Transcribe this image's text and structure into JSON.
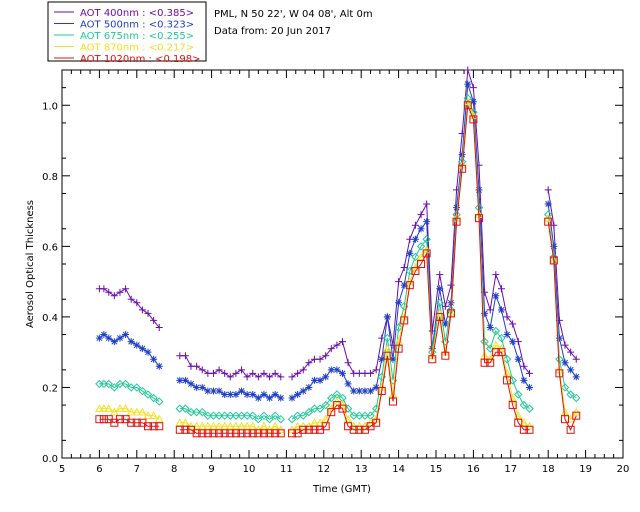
{
  "info": {
    "location": "PML, N 50 22', W 04 08', Alt 0m",
    "date": "Data from: 20 Jun 2017"
  },
  "chart_data": {
    "type": "line",
    "title": "",
    "xlabel": "Time (GMT)",
    "ylabel": "Aerosol Optical Thickness",
    "xlim": [
      5,
      20
    ],
    "ylim": [
      0.0,
      1.1
    ],
    "xticks": [
      5,
      6,
      7,
      8,
      9,
      10,
      11,
      12,
      13,
      14,
      15,
      16,
      17,
      18,
      19,
      20
    ],
    "yticks": [
      0.0,
      0.2,
      0.4,
      0.6,
      0.8,
      1.0
    ],
    "x": [
      6.0,
      6.12,
      6.25,
      6.4,
      6.55,
      6.7,
      6.85,
      7.0,
      7.15,
      7.3,
      7.45,
      7.6,
      8.0,
      8.15,
      8.3,
      8.45,
      8.6,
      8.75,
      8.9,
      9.05,
      9.2,
      9.35,
      9.5,
      9.65,
      9.8,
      9.95,
      10.1,
      10.25,
      10.4,
      10.55,
      10.7,
      10.85,
      11.0,
      11.15,
      11.3,
      11.45,
      11.6,
      11.75,
      11.9,
      12.05,
      12.2,
      12.35,
      12.5,
      12.65,
      12.8,
      12.95,
      13.1,
      13.25,
      13.4,
      13.55,
      13.7,
      13.85,
      14.0,
      14.15,
      14.3,
      14.45,
      14.6,
      14.75,
      14.9,
      15.1,
      15.25,
      15.4,
      15.55,
      15.7,
      15.85,
      16.0,
      16.15,
      16.3,
      16.45,
      16.6,
      16.75,
      16.9,
      17.05,
      17.2,
      17.35,
      17.5,
      17.85,
      18.0,
      18.15,
      18.3,
      18.45,
      18.6,
      18.75
    ],
    "series": [
      {
        "name": "AOT  400nm : <0.385>",
        "color": "#6a0dad",
        "marker": "plus",
        "values": [
          0.48,
          0.48,
          0.47,
          0.46,
          0.47,
          0.48,
          0.45,
          0.44,
          0.42,
          0.41,
          0.39,
          0.37,
          null,
          0.29,
          0.29,
          0.26,
          0.26,
          0.25,
          0.24,
          0.24,
          0.25,
          0.24,
          0.23,
          0.24,
          0.25,
          0.23,
          0.24,
          0.23,
          0.24,
          0.23,
          0.24,
          0.23,
          null,
          0.23,
          0.24,
          0.25,
          0.27,
          0.28,
          0.28,
          0.29,
          0.31,
          0.32,
          0.33,
          0.27,
          0.24,
          0.24,
          0.24,
          0.24,
          0.25,
          0.34,
          0.4,
          0.32,
          0.5,
          0.54,
          0.62,
          0.66,
          0.69,
          0.72,
          0.36,
          0.52,
          0.43,
          0.49,
          0.76,
          0.92,
          1.1,
          1.05,
          0.83,
          0.47,
          0.42,
          0.52,
          0.48,
          0.4,
          0.38,
          0.33,
          0.26,
          0.24,
          null,
          0.76,
          0.66,
          0.39,
          0.32,
          0.3,
          0.28
        ]
      },
      {
        "name": "AOT  500nm : <0.323>",
        "color": "#1f3fc8",
        "marker": "asterisk",
        "values": [
          0.34,
          0.35,
          0.34,
          0.33,
          0.34,
          0.35,
          0.33,
          0.32,
          0.31,
          0.3,
          0.28,
          0.26,
          null,
          0.22,
          0.22,
          0.21,
          0.2,
          0.2,
          0.19,
          0.19,
          0.19,
          0.18,
          0.18,
          0.18,
          0.19,
          0.18,
          0.18,
          0.17,
          0.18,
          0.17,
          0.18,
          0.17,
          null,
          0.17,
          0.18,
          0.19,
          0.2,
          0.22,
          0.22,
          0.23,
          0.25,
          0.25,
          0.24,
          0.21,
          0.19,
          0.19,
          0.19,
          0.19,
          0.2,
          0.28,
          0.4,
          0.28,
          0.44,
          0.49,
          0.58,
          0.62,
          0.65,
          0.67,
          0.31,
          0.48,
          0.38,
          0.44,
          0.71,
          0.86,
          1.06,
          1.01,
          0.76,
          0.41,
          0.37,
          0.46,
          0.42,
          0.35,
          0.33,
          0.28,
          0.22,
          0.2,
          null,
          0.72,
          0.6,
          0.34,
          0.27,
          0.25,
          0.23
        ]
      },
      {
        "name": "AOT  675nm : <0.255>",
        "color": "#20c997",
        "marker": "diamond",
        "values": [
          0.21,
          0.21,
          0.21,
          0.2,
          0.21,
          0.21,
          0.2,
          0.2,
          0.19,
          0.18,
          0.17,
          0.16,
          null,
          0.14,
          0.14,
          0.13,
          0.13,
          0.13,
          0.12,
          0.12,
          0.12,
          0.12,
          0.12,
          0.12,
          0.12,
          0.12,
          0.12,
          0.11,
          0.12,
          0.11,
          0.12,
          0.11,
          null,
          0.11,
          0.12,
          0.12,
          0.13,
          0.14,
          0.14,
          0.15,
          0.17,
          0.18,
          0.17,
          0.14,
          0.12,
          0.12,
          0.12,
          0.12,
          0.14,
          0.23,
          0.34,
          0.22,
          0.37,
          0.43,
          0.53,
          0.57,
          0.6,
          0.62,
          0.3,
          0.44,
          0.33,
          0.42,
          0.69,
          0.84,
          1.02,
          0.98,
          0.71,
          0.33,
          0.31,
          0.36,
          0.34,
          0.28,
          0.22,
          0.18,
          0.15,
          0.14,
          null,
          0.69,
          0.57,
          0.28,
          0.2,
          0.18,
          0.17
        ]
      },
      {
        "name": "AOT  870nm : <0.217>",
        "color": "#f4e020",
        "marker": "triangle",
        "values": [
          0.14,
          0.14,
          0.14,
          0.13,
          0.14,
          0.14,
          0.13,
          0.13,
          0.13,
          0.12,
          0.12,
          0.11,
          null,
          0.1,
          0.1,
          0.09,
          0.09,
          0.09,
          0.09,
          0.09,
          0.09,
          0.09,
          0.09,
          0.09,
          0.09,
          0.09,
          0.09,
          0.08,
          0.09,
          0.08,
          0.09,
          0.08,
          null,
          0.08,
          0.09,
          0.09,
          0.09,
          0.1,
          0.1,
          0.11,
          0.14,
          0.16,
          0.15,
          0.11,
          0.09,
          0.09,
          0.09,
          0.1,
          0.11,
          0.2,
          0.31,
          0.18,
          0.33,
          0.4,
          0.5,
          0.54,
          0.57,
          0.59,
          0.29,
          0.41,
          0.3,
          0.41,
          0.68,
          0.83,
          1.01,
          0.97,
          0.69,
          0.29,
          0.28,
          0.32,
          0.31,
          0.24,
          0.17,
          0.12,
          0.1,
          0.09,
          null,
          0.68,
          0.56,
          0.25,
          0.13,
          0.11,
          0.13
        ]
      },
      {
        "name": "AOT 1020nm : <0.198>",
        "color": "#e01010",
        "marker": "square",
        "values": [
          0.11,
          0.11,
          0.11,
          0.1,
          0.11,
          0.11,
          0.1,
          0.1,
          0.1,
          0.09,
          0.09,
          0.09,
          null,
          0.08,
          0.08,
          0.08,
          0.07,
          0.07,
          0.07,
          0.07,
          0.07,
          0.07,
          0.07,
          0.07,
          0.07,
          0.07,
          0.07,
          0.07,
          0.07,
          0.07,
          0.07,
          0.07,
          null,
          0.07,
          0.07,
          0.08,
          0.08,
          0.08,
          0.08,
          0.09,
          0.13,
          0.15,
          0.14,
          0.09,
          0.08,
          0.08,
          0.08,
          0.09,
          0.1,
          0.19,
          0.29,
          0.16,
          0.31,
          0.39,
          0.49,
          0.53,
          0.55,
          0.58,
          0.28,
          0.4,
          0.29,
          0.41,
          0.67,
          0.82,
          1.0,
          0.96,
          0.68,
          0.27,
          0.27,
          0.3,
          0.3,
          0.22,
          0.15,
          0.1,
          0.08,
          0.08,
          null,
          0.67,
          0.56,
          0.24,
          0.11,
          0.08,
          0.12
        ]
      }
    ]
  }
}
